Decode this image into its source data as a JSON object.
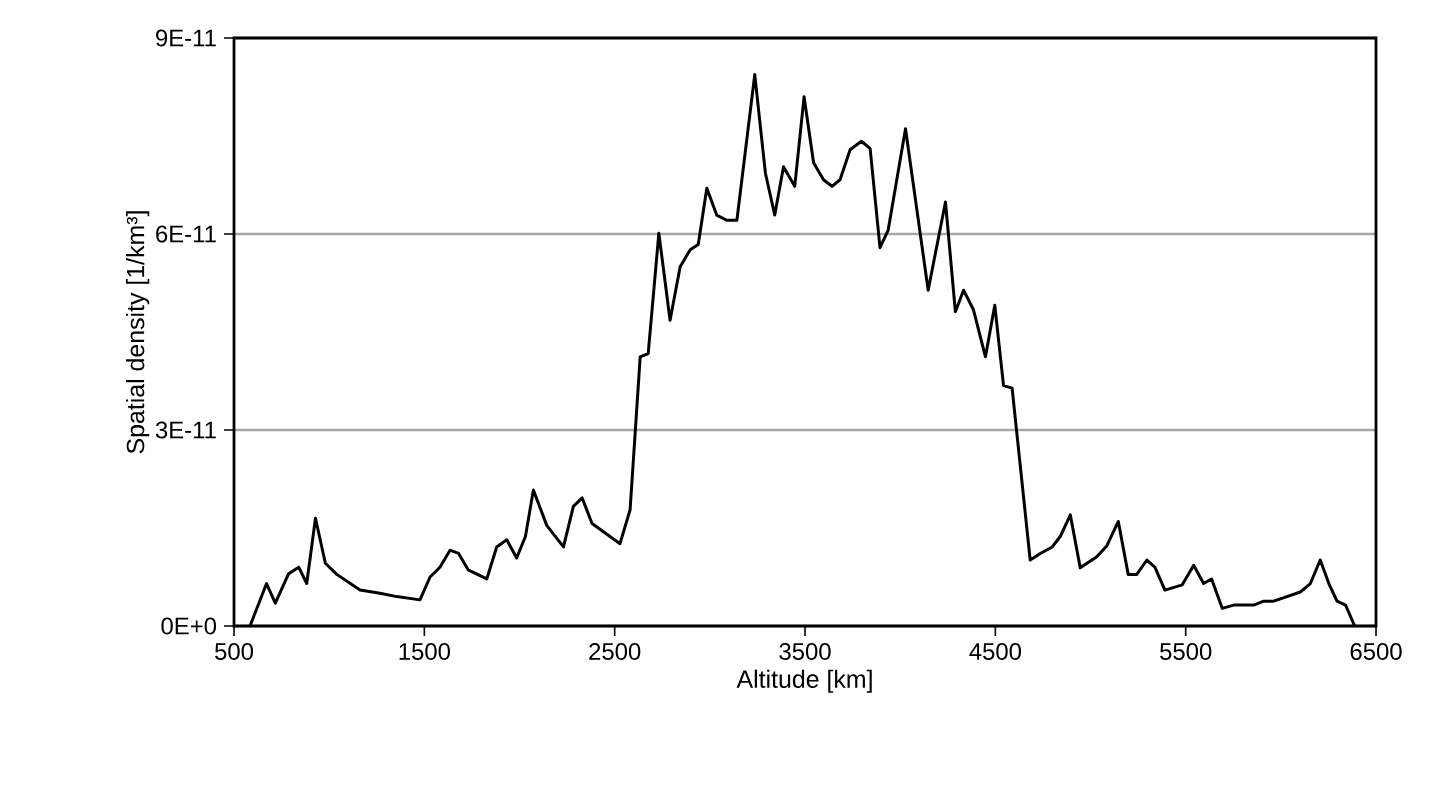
{
  "chart_data": {
    "type": "line",
    "xlabel": "Altitude [km]",
    "ylabel": "Spatial density [1/km³]",
    "x": [
      584,
      671,
      717,
      787,
      840,
      882,
      928,
      980,
      1040,
      1162,
      1267,
      1355,
      1477,
      1530,
      1582,
      1635,
      1680,
      1730,
      1828,
      1880,
      1933,
      1985,
      2031,
      2073,
      2143,
      2231,
      2283,
      2329,
      2381,
      2528,
      2581,
      2634,
      2676,
      2732,
      2791,
      2844,
      2897,
      2939,
      2984,
      3036,
      3089,
      3142,
      3236,
      3292,
      3341,
      3387,
      3446,
      3495,
      3545,
      3597,
      3642,
      3684,
      3737,
      3796,
      3842,
      3894,
      3937,
      4028,
      4147,
      4238,
      4290,
      4333,
      4385,
      4448,
      4497,
      4543,
      4588,
      4683,
      4736,
      4799,
      4841,
      4894,
      4946,
      5033,
      5086,
      5146,
      5198,
      5243,
      5296,
      5338,
      5391,
      5482,
      5542,
      5594,
      5636,
      5692,
      5752,
      5857,
      5910,
      5962,
      6032,
      6102,
      6155,
      6207,
      6252,
      6295,
      6340,
      6388
    ],
    "series": [
      {
        "color": "#000000",
        "values": [
          0,
          6.5e-12,
          3.5e-12,
          8e-12,
          9e-12,
          6.5e-12,
          1.65e-11,
          9.6e-12,
          7.9e-12,
          5.5e-12,
          5e-12,
          4.5e-12,
          4e-12,
          7.5e-12,
          9e-12,
          1.16e-11,
          1.11e-11,
          8.6e-12,
          7.2e-12,
          1.21e-11,
          1.32e-11,
          1.04e-11,
          1.37e-11,
          2.08e-11,
          1.54e-11,
          1.21e-11,
          1.83e-11,
          1.96e-11,
          1.57e-11,
          1.26e-11,
          1.78e-11,
          4.12e-11,
          4.17e-11,
          6.01e-11,
          4.68e-11,
          5.5e-11,
          5.76e-11,
          5.84e-11,
          6.7e-11,
          6.29e-11,
          6.21e-11,
          6.21e-11,
          8.44e-11,
          6.93e-11,
          6.29e-11,
          7.03e-11,
          6.73e-11,
          8.1e-11,
          7.09e-11,
          6.83e-11,
          6.73e-11,
          6.83e-11,
          7.29e-11,
          7.42e-11,
          7.31e-11,
          5.79e-11,
          6.06e-11,
          7.61e-11,
          5.14e-11,
          6.49e-11,
          4.81e-11,
          5.14e-11,
          4.84e-11,
          4.12e-11,
          4.91e-11,
          3.68e-11,
          3.64e-11,
          1.01e-11,
          1.11e-11,
          1.21e-11,
          1.37e-11,
          1.7e-11,
          8.9e-12,
          1.06e-11,
          1.23e-11,
          1.6e-11,
          7.9e-12,
          7.9e-12,
          1.01e-11,
          9e-12,
          5.5e-12,
          6.3e-12,
          9.3e-12,
          6.5e-12,
          7.2e-12,
          2.7e-12,
          3.2e-12,
          3.2e-12,
          3.8e-12,
          3.8e-12,
          4.5e-12,
          5.2e-12,
          6.5e-12,
          1.01e-11,
          6.5e-12,
          3.8e-12,
          3.2e-12,
          0
        ]
      }
    ],
    "xlim": [
      500,
      6500
    ],
    "xticks": [
      500,
      1500,
      2500,
      3500,
      4500,
      5500,
      6500
    ],
    "ylim": [
      0,
      9e-11
    ],
    "yticks": [
      {
        "value": 0,
        "label": "0E+0"
      },
      {
        "value": 3e-11,
        "label": "3E-11"
      },
      {
        "value": 6e-11,
        "label": "6E-11"
      },
      {
        "value": 9e-11,
        "label": "9E-11"
      }
    ],
    "grid": "y",
    "marker": "none",
    "line_style": "solid"
  }
}
